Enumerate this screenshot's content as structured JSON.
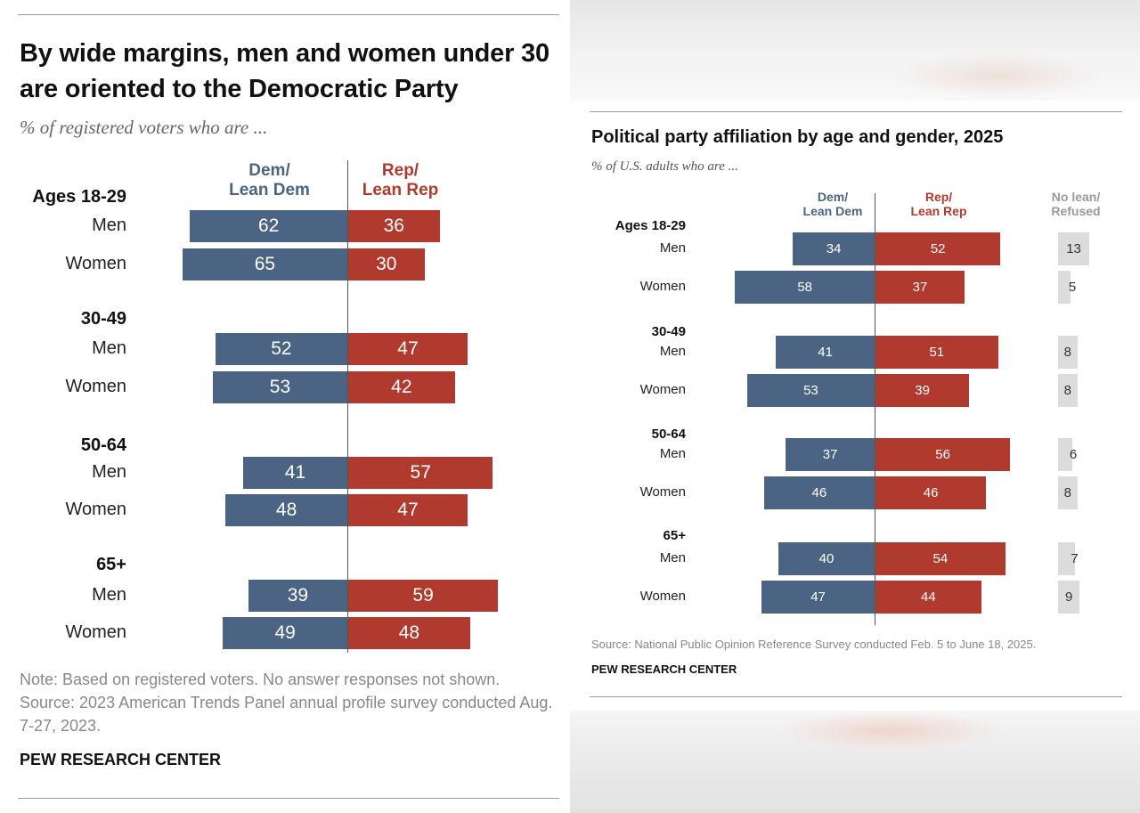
{
  "chart_data": [
    {
      "type": "bar",
      "title": "By wide margins, men and women under 30 are oriented to the Democratic Party",
      "subtitle": "% of registered voters who are ...",
      "series_labels": {
        "dem": "Dem/\nLean Dem",
        "rep": "Rep/\nLean Rep"
      },
      "groups": [
        {
          "label": "Ages 18-29",
          "rows": [
            {
              "label": "Men",
              "dem": 62,
              "rep": 36
            },
            {
              "label": "Women",
              "dem": 65,
              "rep": 30
            }
          ]
        },
        {
          "label": "30-49",
          "rows": [
            {
              "label": "Men",
              "dem": 52,
              "rep": 47
            },
            {
              "label": "Women",
              "dem": 53,
              "rep": 42
            }
          ]
        },
        {
          "label": "50-64",
          "rows": [
            {
              "label": "Men",
              "dem": 41,
              "rep": 57
            },
            {
              "label": "Women",
              "dem": 48,
              "rep": 47
            }
          ]
        },
        {
          "label": "65+",
          "rows": [
            {
              "label": "Men",
              "dem": 39,
              "rep": 59
            },
            {
              "label": "Women",
              "dem": 49,
              "rep": 48
            }
          ]
        }
      ],
      "note": "Note: Based on registered voters. No answer responses not shown.",
      "source": "Source: 2023 American Trends Panel annual profile survey conducted Aug. 7-27, 2023.",
      "brand": "PEW RESEARCH CENTER",
      "colors": {
        "dem": "#4b6483",
        "rep": "#b03a2e"
      }
    },
    {
      "type": "bar",
      "title": "Political party affiliation by age and gender, 2025",
      "subtitle": "% of U.S. adults who are ...",
      "series_labels": {
        "dem": "Dem/\nLean Dem",
        "rep": "Rep/\nLean Rep",
        "nolean": "No lean/\nRefused"
      },
      "groups": [
        {
          "label": "Ages 18-29",
          "rows": [
            {
              "label": "Men",
              "dem": 34,
              "rep": 52,
              "nolean": 13
            },
            {
              "label": "Women",
              "dem": 58,
              "rep": 37,
              "nolean": 5
            }
          ]
        },
        {
          "label": "30-49",
          "rows": [
            {
              "label": "Men",
              "dem": 41,
              "rep": 51,
              "nolean": 8
            },
            {
              "label": "Women",
              "dem": 53,
              "rep": 39,
              "nolean": 8
            }
          ]
        },
        {
          "label": "50-64",
          "rows": [
            {
              "label": "Men",
              "dem": 37,
              "rep": 56,
              "nolean": 6
            },
            {
              "label": "Women",
              "dem": 46,
              "rep": 46,
              "nolean": 8
            }
          ]
        },
        {
          "label": "65+",
          "rows": [
            {
              "label": "Men",
              "dem": 40,
              "rep": 54,
              "nolean": 7
            },
            {
              "label": "Women",
              "dem": 47,
              "rep": 44,
              "nolean": 9
            }
          ]
        }
      ],
      "source": "Source: National Public Opinion Reference Survey conducted Feb. 5 to June 18, 2025.",
      "brand": "PEW RESEARCH CENTER",
      "colors": {
        "dem": "#4b6483",
        "rep": "#b03a2e",
        "nolean": "#dcdcdc"
      }
    }
  ]
}
